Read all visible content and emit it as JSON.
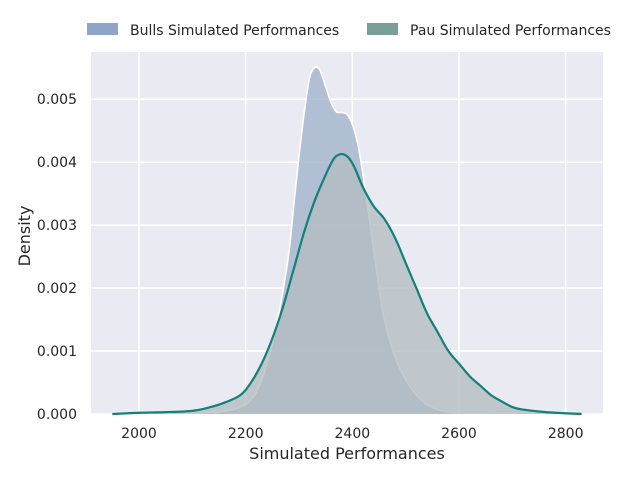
{
  "chart_data": {
    "type": "area",
    "title": "",
    "xlabel": "Simulated Performances",
    "ylabel": "Density",
    "xlim": [
      1910,
      2870
    ],
    "ylim": [
      0,
      0.00575
    ],
    "x_ticks": [
      2000,
      2200,
      2400,
      2600,
      2800
    ],
    "x_tick_labels": [
      "2000",
      "2200",
      "2400",
      "2600",
      "2800"
    ],
    "y_ticks": [
      0,
      0.001,
      0.002,
      0.003,
      0.004,
      0.005
    ],
    "y_tick_labels": [
      "0.000",
      "0.001",
      "0.002",
      "0.003",
      "0.004",
      "0.005"
    ],
    "grid": true,
    "legend_position": "top",
    "background": "#eaeaf2",
    "series": [
      {
        "name": "Bulls Simulated Performances",
        "fill": "#a7b7d0",
        "stroke": "#ffffff",
        "legend_color": "#8fa5c7",
        "x": [
          2060,
          2110,
          2150,
          2180,
          2200,
          2220,
          2240,
          2260,
          2280,
          2290,
          2300,
          2310,
          2320,
          2330,
          2335,
          2340,
          2350,
          2360,
          2370,
          2380,
          2390,
          2400,
          2410,
          2420,
          2430,
          2440,
          2450,
          2460,
          2480,
          2500,
          2520,
          2540,
          2560,
          2580,
          2600,
          2630,
          2660
        ],
        "y": [
          0,
          1e-05,
          3e-05,
          8e-05,
          0.00015,
          0.00035,
          0.0008,
          0.0015,
          0.0025,
          0.0033,
          0.0041,
          0.0048,
          0.00535,
          0.00551,
          0.0055,
          0.00545,
          0.0052,
          0.00495,
          0.0048,
          0.00479,
          0.00476,
          0.0046,
          0.0043,
          0.0038,
          0.0032,
          0.0026,
          0.002,
          0.0015,
          0.0009,
          0.00055,
          0.0003,
          0.00015,
          7e-05,
          3e-05,
          1e-05,
          3e-06,
          0
        ]
      },
      {
        "name": "Pau Simulated Performances",
        "fill": "#b3bcc2",
        "stroke": "#138079",
        "legend_color": "#7a9e98",
        "x": [
          1950,
          2000,
          2050,
          2100,
          2130,
          2160,
          2190,
          2210,
          2230,
          2250,
          2270,
          2290,
          2310,
          2330,
          2350,
          2365,
          2375,
          2385,
          2395,
          2405,
          2420,
          2440,
          2460,
          2480,
          2500,
          2520,
          2540,
          2560,
          2580,
          2600,
          2620,
          2640,
          2660,
          2680,
          2700,
          2720,
          2750,
          2780,
          2830
        ],
        "y": [
          0,
          2e-05,
          3e-05,
          5e-05,
          0.0001,
          0.00018,
          0.0003,
          0.0005,
          0.0008,
          0.0012,
          0.0017,
          0.0023,
          0.0029,
          0.0034,
          0.0038,
          0.00405,
          0.00412,
          0.00412,
          0.00405,
          0.0039,
          0.0036,
          0.0033,
          0.0031,
          0.0028,
          0.0024,
          0.002,
          0.0016,
          0.0013,
          0.001,
          0.0008,
          0.0006,
          0.00045,
          0.0003,
          0.0002,
          0.00011,
          7e-05,
          4e-05,
          2e-05,
          0
        ]
      }
    ]
  }
}
